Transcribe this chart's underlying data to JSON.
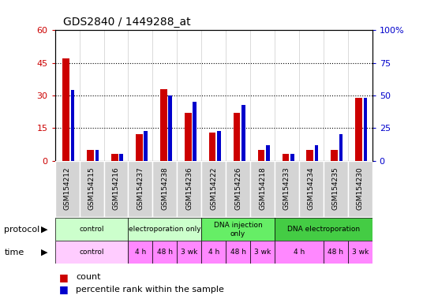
{
  "title": "GDS2840 / 1449288_at",
  "samples": [
    "GSM154212",
    "GSM154215",
    "GSM154216",
    "GSM154237",
    "GSM154238",
    "GSM154236",
    "GSM154222",
    "GSM154226",
    "GSM154218",
    "GSM154233",
    "GSM154234",
    "GSM154235",
    "GSM154230"
  ],
  "counts": [
    47,
    5,
    3,
    12,
    33,
    22,
    13,
    22,
    5,
    3,
    5,
    5,
    29
  ],
  "percentile": [
    54,
    8,
    5,
    23,
    50,
    45,
    23,
    43,
    12,
    5,
    12,
    20,
    48
  ],
  "ylim_left": [
    0,
    60
  ],
  "ylim_right": [
    0,
    100
  ],
  "yticks_left": [
    0,
    15,
    30,
    45,
    60
  ],
  "yticks_right": [
    0,
    25,
    50,
    75,
    100
  ],
  "count_color": "#cc0000",
  "percentile_color": "#0000cc",
  "proto_groups": [
    {
      "label": "control",
      "start": 0,
      "end": 3,
      "color": "#ccffcc"
    },
    {
      "label": "electroporation only",
      "start": 3,
      "end": 6,
      "color": "#ccffcc"
    },
    {
      "label": "DNA injection\nonly",
      "start": 6,
      "end": 9,
      "color": "#66ee66"
    },
    {
      "label": "DNA electroporation",
      "start": 9,
      "end": 13,
      "color": "#44cc44"
    }
  ],
  "time_groups": [
    {
      "label": "control",
      "start": 0,
      "end": 3,
      "color": "#ffccff"
    },
    {
      "label": "4 h",
      "start": 3,
      "end": 4,
      "color": "#ff88ff"
    },
    {
      "label": "48 h",
      "start": 4,
      "end": 5,
      "color": "#ff88ff"
    },
    {
      "label": "3 wk",
      "start": 5,
      "end": 6,
      "color": "#ff88ff"
    },
    {
      "label": "4 h",
      "start": 6,
      "end": 7,
      "color": "#ff88ff"
    },
    {
      "label": "48 h",
      "start": 7,
      "end": 8,
      "color": "#ff88ff"
    },
    {
      "label": "3 wk",
      "start": 8,
      "end": 9,
      "color": "#ff88ff"
    },
    {
      "label": "4 h",
      "start": 9,
      "end": 11,
      "color": "#ff88ff"
    },
    {
      "label": "48 h",
      "start": 11,
      "end": 12,
      "color": "#ff88ff"
    },
    {
      "label": "3 wk",
      "start": 12,
      "end": 13,
      "color": "#ff88ff"
    }
  ],
  "legend_count_label": "count",
  "legend_percentile_label": "percentile rank within the sample",
  "bg_color": "#ffffff",
  "plot_bg_color": "#ffffff",
  "sample_box_color": "#d4d4d4",
  "left_tick_color": "#cc0000",
  "right_tick_color": "#0000cc"
}
